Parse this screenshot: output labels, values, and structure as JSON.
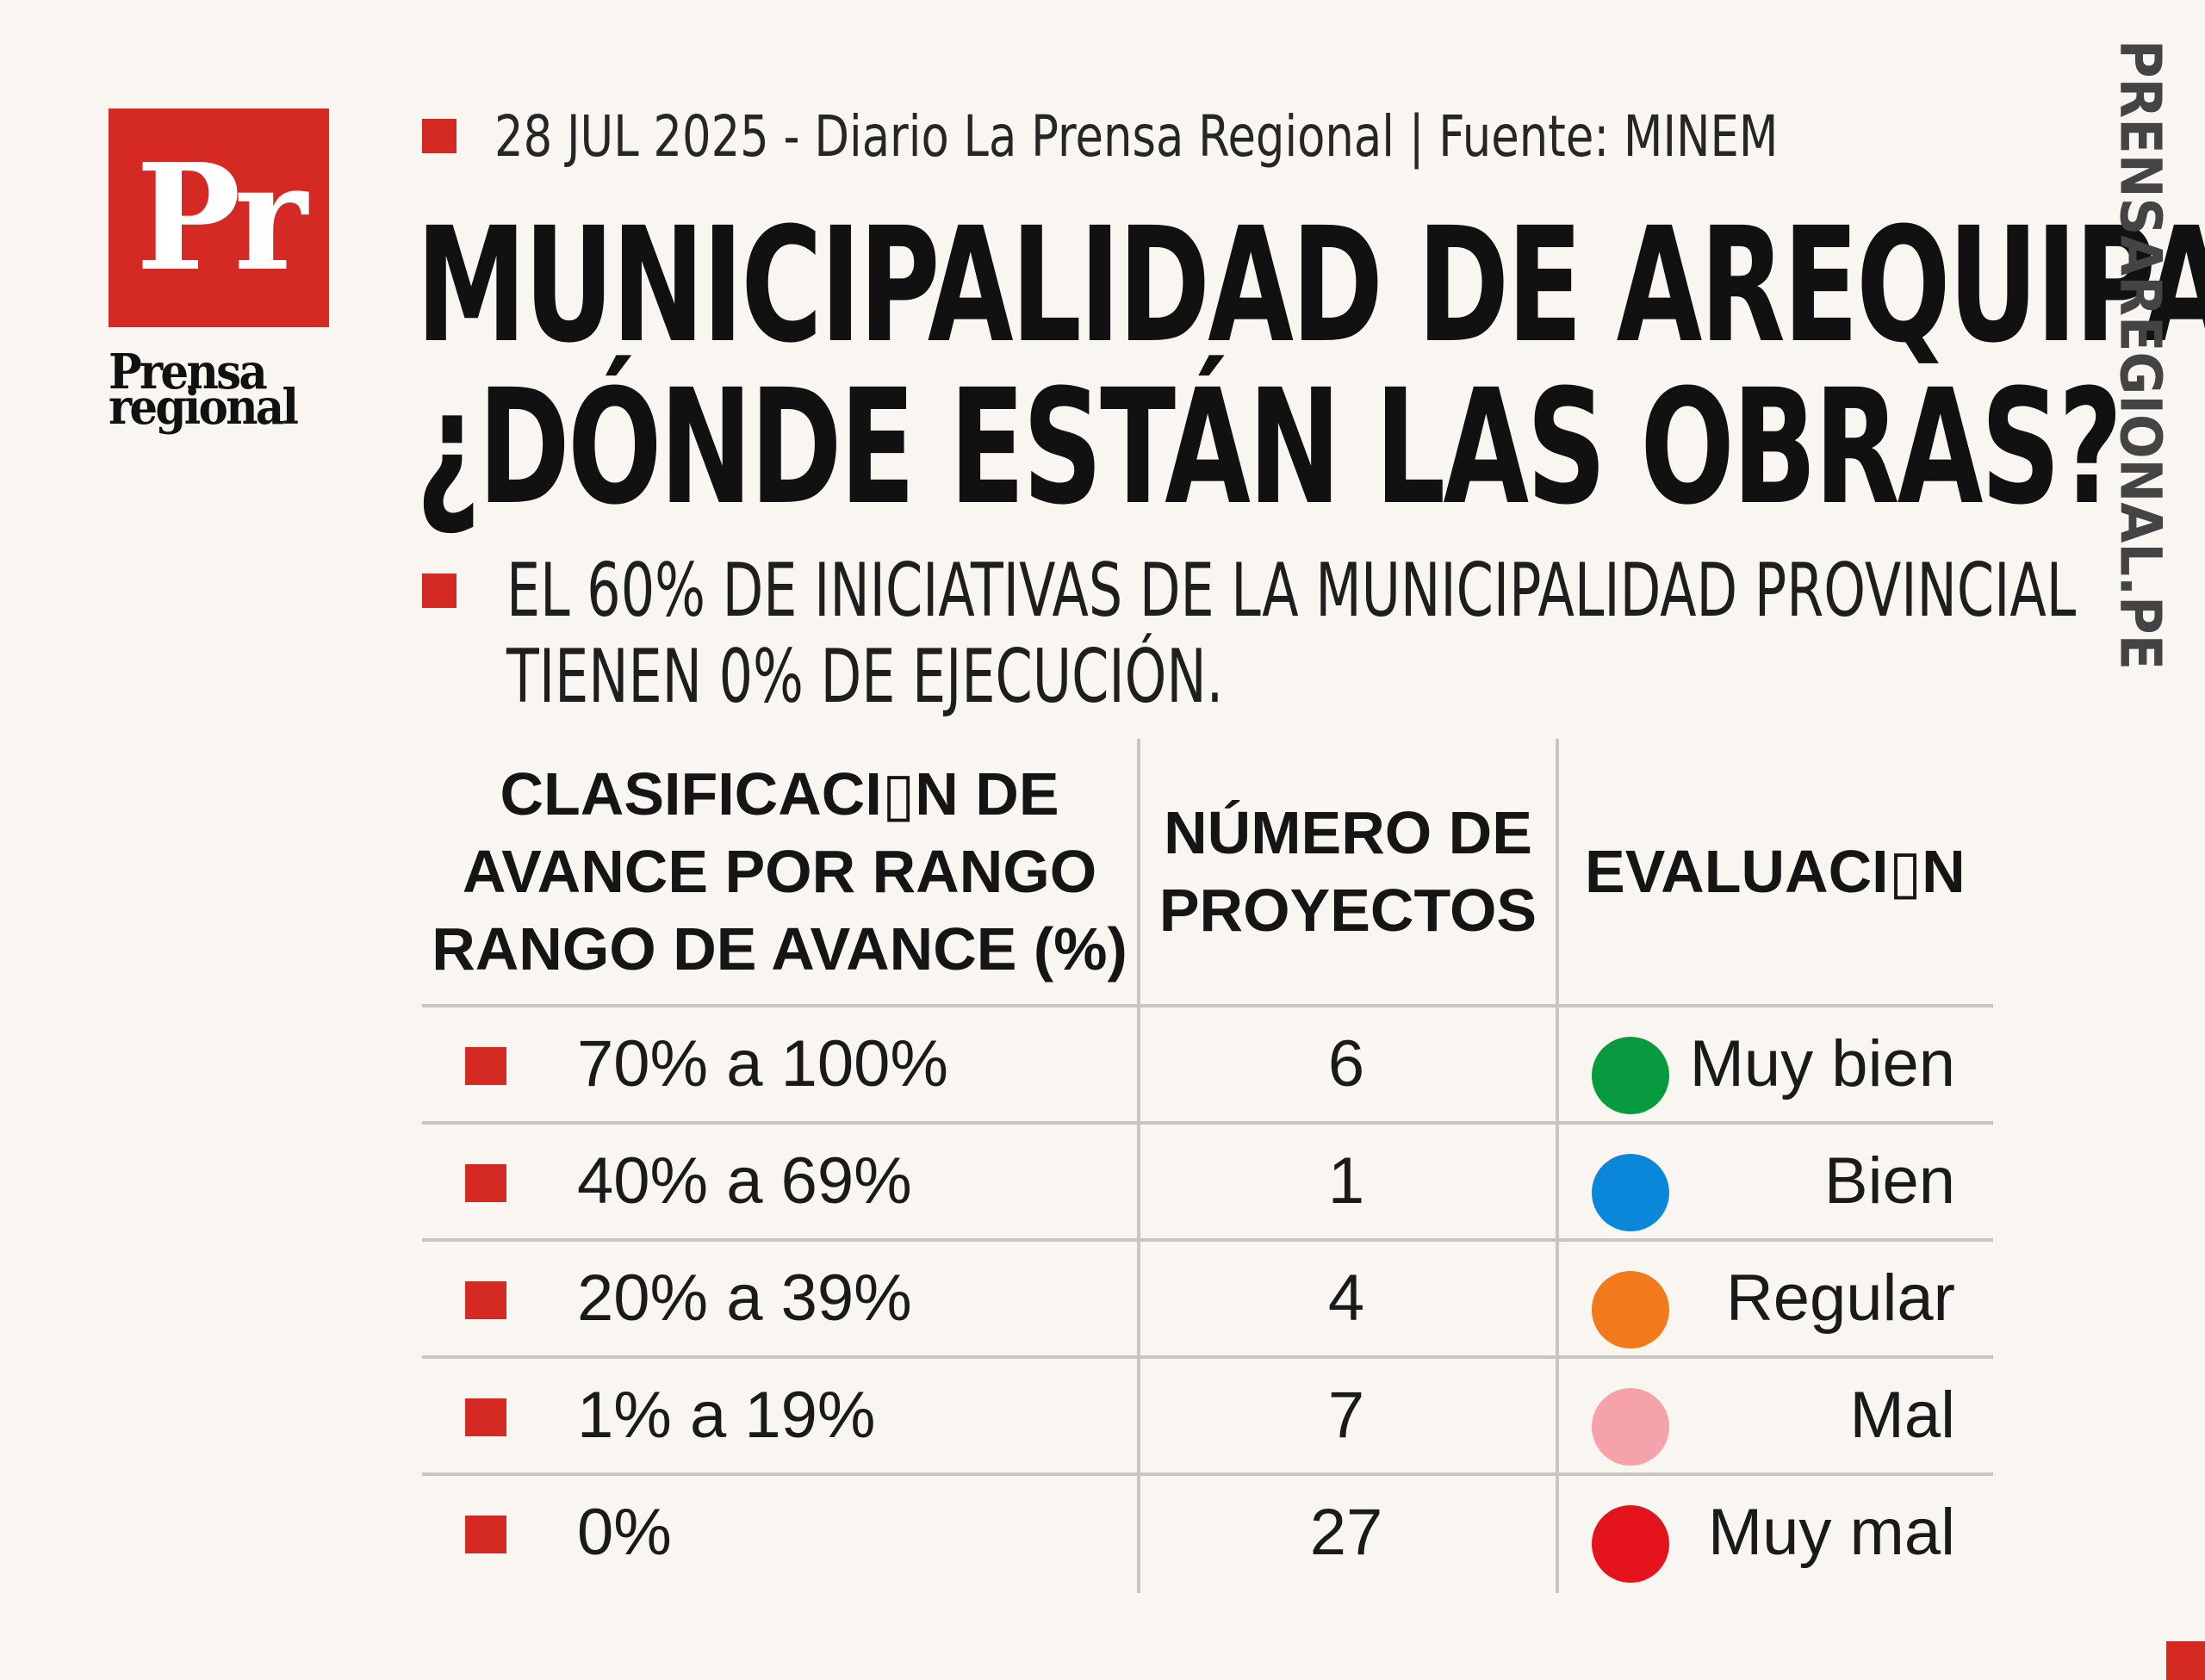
{
  "logo": {
    "mark": "Pr",
    "name_line1": "Prensa",
    "name_line2": "regional"
  },
  "dateline": "28 JUL 2025 -  Diario La Prensa Regional | Fuente: MINEM",
  "headline": {
    "line1": "MUNICIPALIDAD DE AREQUIPA:",
    "line2": "¿DÓNDE ESTÁN LAS OBRAS?"
  },
  "subhead": {
    "line1": "EL 60% DE INICIATIVAS DE LA MUNICIPALIDAD PROVINCIAL",
    "line2": "TIENEN 0% DE EJECUCIÓN."
  },
  "side_label": "PRENSAREGIONAL.PE",
  "colors": {
    "accent": "#d52a24"
  },
  "table": {
    "headers": {
      "range": "CLASIFICACI▯N DE\nAVANCE POR RANGO\nRANGO DE AVANCE (%)",
      "count": "NÚMERO DE\nPROYECTOS",
      "evaluation": "EVALUACI▯N"
    },
    "rows": [
      {
        "range": "70% a 100%",
        "count": "6",
        "evaluation": "Muy bien",
        "color": "#079a3e"
      },
      {
        "range": "40% a 69%",
        "count": "1",
        "evaluation": "Bien",
        "color": "#0a87d8"
      },
      {
        "range": "20% a 39%",
        "count": "4",
        "evaluation": "Regular",
        "color": "#f27a1a"
      },
      {
        "range": "1% a 19%",
        "count": "7",
        "evaluation": "Mal",
        "color": "#f5a2aa"
      },
      {
        "range": "0%",
        "count": "27",
        "evaluation": "Muy mal",
        "color": "#e5141c"
      }
    ]
  }
}
